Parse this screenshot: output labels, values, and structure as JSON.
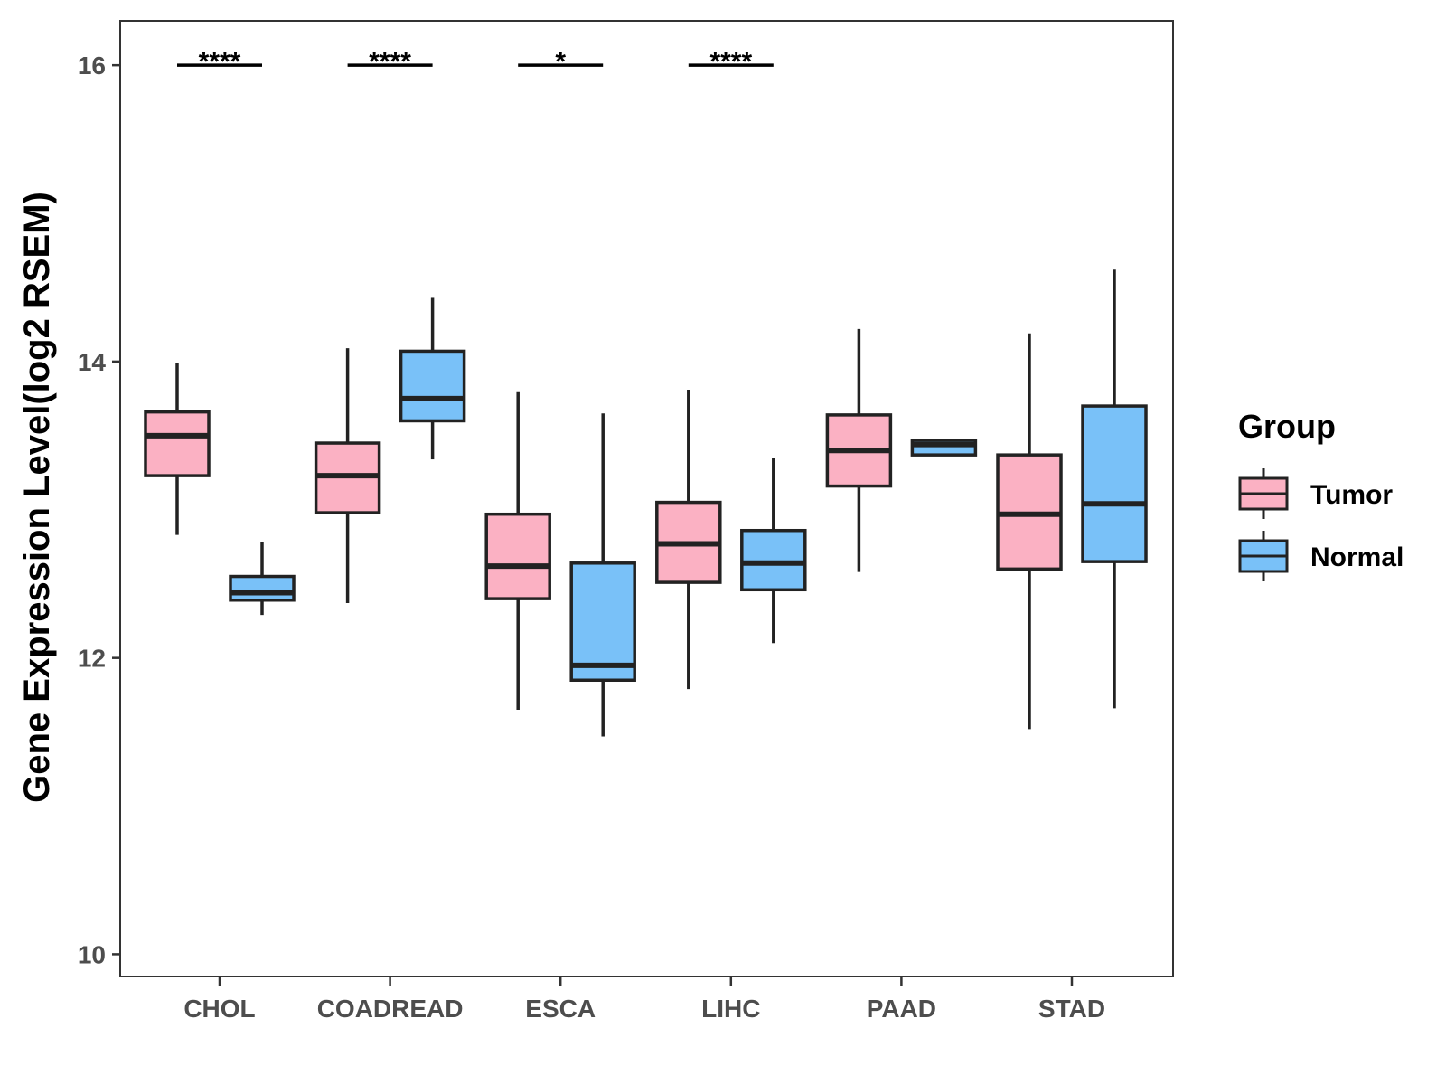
{
  "chart_data": {
    "type": "boxplot",
    "title": "",
    "xlabel": "",
    "ylabel": "Gene Expression Level(log2 RSEM)",
    "ylim": [
      9.85,
      16.3
    ],
    "yticks": [
      10,
      12,
      14,
      16
    ],
    "ytick_labels": [
      "10",
      "12",
      "14",
      "16"
    ],
    "grid": false,
    "legend": {
      "title": "Group",
      "position": "right",
      "entries": [
        {
          "name": "Tumor",
          "color": "#FBB1C3"
        },
        {
          "name": "Normal",
          "color": "#79C1F8"
        }
      ]
    },
    "categories": [
      "CHOL",
      "COADREAD",
      "ESCA",
      "LIHC",
      "PAAD",
      "STAD"
    ],
    "series": [
      {
        "name": "Tumor",
        "color": "#FBB1C3",
        "boxes": [
          {
            "min": 12.83,
            "q1": 13.23,
            "median": 13.5,
            "q3": 13.66,
            "max": 13.99
          },
          {
            "min": 12.37,
            "q1": 12.98,
            "median": 13.23,
            "q3": 13.45,
            "max": 14.09
          },
          {
            "min": 11.65,
            "q1": 12.4,
            "median": 12.62,
            "q3": 12.97,
            "max": 13.8
          },
          {
            "min": 11.79,
            "q1": 12.51,
            "median": 12.77,
            "q3": 13.05,
            "max": 13.81
          },
          {
            "min": 12.58,
            "q1": 13.16,
            "median": 13.4,
            "q3": 13.64,
            "max": 14.22
          },
          {
            "min": 11.52,
            "q1": 12.6,
            "median": 12.97,
            "q3": 13.37,
            "max": 14.19
          }
        ]
      },
      {
        "name": "Normal",
        "color": "#79C1F8",
        "boxes": [
          {
            "min": 12.29,
            "q1": 12.39,
            "median": 12.44,
            "q3": 12.55,
            "max": 12.78
          },
          {
            "min": 13.34,
            "q1": 13.6,
            "median": 13.75,
            "q3": 14.07,
            "max": 14.43
          },
          {
            "min": 11.47,
            "q1": 11.85,
            "median": 11.95,
            "q3": 12.64,
            "max": 13.65
          },
          {
            "min": 12.1,
            "q1": 12.46,
            "median": 12.64,
            "q3": 12.86,
            "max": 13.35
          },
          {
            "min": 13.37,
            "q1": 13.37,
            "median": 13.44,
            "q3": 13.47,
            "max": 13.47
          },
          {
            "min": 11.66,
            "q1": 12.65,
            "median": 13.04,
            "q3": 13.7,
            "max": 14.62
          }
        ]
      }
    ],
    "annotations": [
      {
        "category": "CHOL",
        "text": "****"
      },
      {
        "category": "COADREAD",
        "text": "****"
      },
      {
        "category": "ESCA",
        "text": "*"
      },
      {
        "category": "LIHC",
        "text": "****"
      }
    ]
  }
}
